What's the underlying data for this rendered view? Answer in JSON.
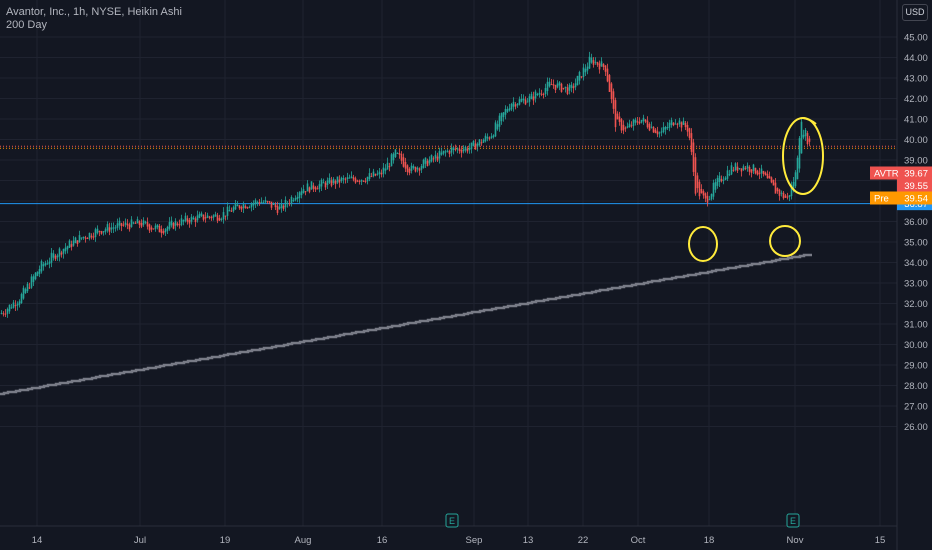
{
  "header": {
    "title": "Avantor, Inc., 1h, NYSE, Heikin Ashi",
    "indicator": "200 Day"
  },
  "currency": "USD",
  "colors": {
    "background": "#131722",
    "up": "#26a69a",
    "down": "#ef5350",
    "ma": "#787b86",
    "support": "#2962ff",
    "annotation": "#ffeb3b",
    "pre": "#ff9800"
  },
  "chart_data": {
    "type": "candlestick",
    "x_ticks": [
      "14",
      "Jul",
      "19",
      "Aug",
      "16",
      "Sep",
      "13",
      "22",
      "Oct",
      "18",
      "Nov",
      "15"
    ],
    "y_ticks": [
      "45.00",
      "44.00",
      "43.00",
      "42.00",
      "41.00",
      "40.00",
      "39.00",
      "38.00",
      "37.00",
      "36.00",
      "35.00",
      "34.00",
      "33.00",
      "32.00",
      "31.00",
      "30.00",
      "29.00",
      "28.00",
      "27.00",
      "26.00"
    ],
    "ylim": [
      25.8,
      45.4
    ],
    "price_path": [
      [
        0,
        31.5
      ],
      [
        20,
        32.3
      ],
      [
        40,
        33.8
      ],
      [
        60,
        34.6
      ],
      [
        80,
        35.2
      ],
      [
        100,
        35.6
      ],
      [
        120,
        35.8
      ],
      [
        140,
        35.9
      ],
      [
        160,
        35.6
      ],
      [
        180,
        36.0
      ],
      [
        200,
        36.2
      ],
      [
        220,
        36.3
      ],
      [
        240,
        36.8
      ],
      [
        260,
        37.0
      ],
      [
        280,
        36.6
      ],
      [
        300,
        37.6
      ],
      [
        320,
        37.8
      ],
      [
        340,
        38.0
      ],
      [
        360,
        38.1
      ],
      [
        380,
        38.3
      ],
      [
        395,
        39.3
      ],
      [
        410,
        38.5
      ],
      [
        430,
        39.0
      ],
      [
        450,
        39.5
      ],
      [
        470,
        39.6
      ],
      [
        490,
        40.2
      ],
      [
        510,
        41.8
      ],
      [
        530,
        42.0
      ],
      [
        550,
        42.7
      ],
      [
        570,
        42.4
      ],
      [
        590,
        43.9
      ],
      [
        605,
        43.5
      ],
      [
        615,
        40.8
      ],
      [
        625,
        40.5
      ],
      [
        640,
        41.0
      ],
      [
        660,
        40.3
      ],
      [
        675,
        41.0
      ],
      [
        688,
        40.5
      ],
      [
        695,
        37.6
      ],
      [
        705,
        37.0
      ],
      [
        715,
        37.8
      ],
      [
        730,
        38.6
      ],
      [
        745,
        38.7
      ],
      [
        760,
        38.4
      ],
      [
        775,
        37.5
      ],
      [
        787,
        37.1
      ],
      [
        795,
        38.3
      ],
      [
        800,
        40.8
      ],
      [
        810,
        39.7
      ]
    ],
    "ma_200": {
      "name": "200 Day",
      "start": [
        0,
        27.6
      ],
      "end": [
        810,
        34.4
      ]
    },
    "support_level": 36.87,
    "last_price": {
      "symbol": "AVTR",
      "value": 39.67,
      "secondary": 39.55
    },
    "premarket": {
      "label": "Pre",
      "value": 39.54
    },
    "earnings_markers": [
      {
        "x": 452,
        "label": "E"
      },
      {
        "x": 793,
        "label": "E"
      }
    ],
    "annotations": [
      {
        "type": "ellipse",
        "x": 703,
        "y": 36.9
      },
      {
        "type": "ellipse",
        "x": 785,
        "y": 37.0
      },
      {
        "type": "ellipse",
        "x": 802,
        "y": 40.1
      }
    ]
  }
}
